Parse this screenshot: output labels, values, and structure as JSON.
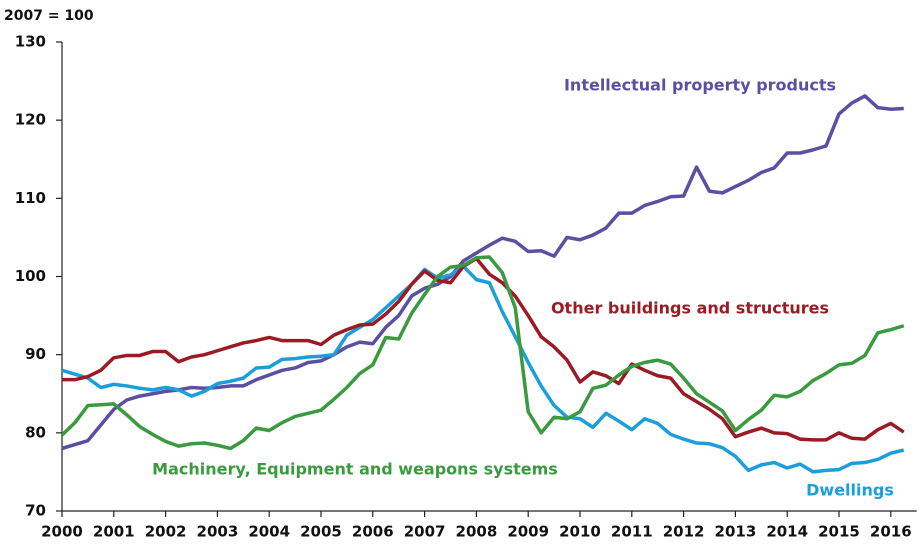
{
  "chart_data": {
    "type": "line",
    "title": "2007 = 100",
    "x": [
      2000,
      2000.25,
      2000.5,
      2000.75,
      2001,
      2001.25,
      2001.5,
      2001.75,
      2002,
      2002.25,
      2002.5,
      2002.75,
      2003,
      2003.25,
      2003.5,
      2003.75,
      2004,
      2004.25,
      2004.5,
      2004.75,
      2005,
      2005.25,
      2005.5,
      2005.75,
      2006,
      2006.25,
      2006.5,
      2006.75,
      2007,
      2007.25,
      2007.5,
      2007.75,
      2008,
      2008.25,
      2008.5,
      2008.75,
      2009,
      2009.25,
      2009.5,
      2009.75,
      2010,
      2010.25,
      2010.5,
      2010.75,
      2011,
      2011.25,
      2011.5,
      2011.75,
      2012,
      2012.25,
      2012.5,
      2012.75,
      2013,
      2013.25,
      2013.5,
      2013.75,
      2014,
      2014.25,
      2014.5,
      2014.75,
      2015,
      2015.25,
      2015.5,
      2015.75,
      2016,
      2016.25
    ],
    "xlim": [
      2000,
      2016.5
    ],
    "xticks": [
      2000,
      2001,
      2002,
      2003,
      2004,
      2005,
      2006,
      2007,
      2008,
      2009,
      2010,
      2011,
      2012,
      2013,
      2014,
      2015,
      2016
    ],
    "ylim": [
      70,
      130
    ],
    "yticks": [
      70,
      80,
      90,
      100,
      110,
      120,
      130
    ],
    "grid": false,
    "series": [
      {
        "name": "Intellectual property products",
        "color": "#5a4fa2",
        "values": [
          78,
          78.5,
          79,
          81,
          83,
          84.2,
          84.7,
          85,
          85.3,
          85.5,
          85.8,
          85.7,
          85.8,
          86,
          86,
          86.8,
          87.4,
          88,
          88.3,
          89,
          89.2,
          90,
          91,
          91.6,
          91.4,
          93.5,
          95,
          97.5,
          98.5,
          99,
          100,
          102,
          103,
          104,
          104.9,
          104.5,
          103.2,
          103.3,
          102.6,
          105,
          104.7,
          105.3,
          106.2,
          108.1,
          108.1,
          109.1,
          109.6,
          110.2,
          110.3,
          114,
          110.9,
          110.7,
          111.5,
          112.3,
          113.3,
          113.9,
          115.8,
          115.8,
          116.2,
          116.7,
          120.8,
          122.2,
          123.1,
          121.6,
          121.4,
          121.5
        ]
      },
      {
        "name": "Dwellings",
        "color": "#1a9fdb",
        "values": [
          88,
          87.5,
          87,
          85.8,
          86.2,
          86,
          85.7,
          85.5,
          85.8,
          85.5,
          84.7,
          85.3,
          86.3,
          86.6,
          87,
          88.3,
          88.4,
          89.4,
          89.5,
          89.7,
          89.8,
          90,
          92.5,
          93.5,
          94.5,
          96,
          97.5,
          99,
          100.9,
          99.8,
          100.2,
          101.3,
          99.6,
          99.2,
          95.5,
          92.3,
          89,
          86,
          83.5,
          82,
          81.8,
          80.7,
          82.5,
          81.5,
          80.4,
          81.8,
          81.2,
          79.8,
          79.2,
          78.7,
          78.6,
          78.1,
          77,
          75.2,
          75.9,
          76.2,
          75.5,
          76,
          75,
          75.2,
          75.3,
          76.1,
          76.2,
          76.6,
          77.4,
          77.8
        ]
      },
      {
        "name": "Other buildings and structures",
        "color": "#9b1b25",
        "values": [
          86.8,
          86.8,
          87.2,
          88,
          89.6,
          89.9,
          89.9,
          90.4,
          90.4,
          89.1,
          89.7,
          90,
          90.5,
          91,
          91.5,
          91.8,
          92.2,
          91.8,
          91.8,
          91.8,
          91.3,
          92.5,
          93.2,
          93.8,
          93.9,
          95.2,
          96.8,
          99,
          100.7,
          99.5,
          99.2,
          101.3,
          102.3,
          100.3,
          99.2,
          97.5,
          95,
          92.3,
          91,
          89.3,
          86.5,
          87.8,
          87.3,
          86.3,
          88.8,
          88,
          87.3,
          87,
          85,
          84,
          83,
          81.8,
          79.5,
          80.1,
          80.6,
          80,
          79.9,
          79.2,
          79.1,
          79.1,
          80,
          79.3,
          79.2,
          80.4,
          81.2,
          80.1
        ]
      },
      {
        "name": "Machinery, Equipment and weapons systems",
        "color": "#3a9a3f",
        "values": [
          79.7,
          81.3,
          83.5,
          83.6,
          83.7,
          82.3,
          80.8,
          79.8,
          78.9,
          78.3,
          78.6,
          78.7,
          78.4,
          78,
          79,
          80.6,
          80.3,
          81.3,
          82.1,
          82.5,
          82.9,
          84.3,
          85.8,
          87.6,
          88.7,
          92.2,
          92,
          95.3,
          97.7,
          100,
          101.2,
          101.4,
          102.4,
          102.5,
          100.5,
          96,
          82.7,
          80,
          82,
          81.8,
          82.7,
          85.7,
          86.1,
          87.4,
          88.5,
          89,
          89.3,
          88.8,
          87,
          85,
          83.9,
          82.8,
          80.3,
          81.7,
          82.9,
          84.8,
          84.6,
          85.3,
          86.7,
          87.6,
          88.7,
          88.9,
          89.9,
          92.8,
          93.2,
          93.7
        ]
      }
    ]
  }
}
